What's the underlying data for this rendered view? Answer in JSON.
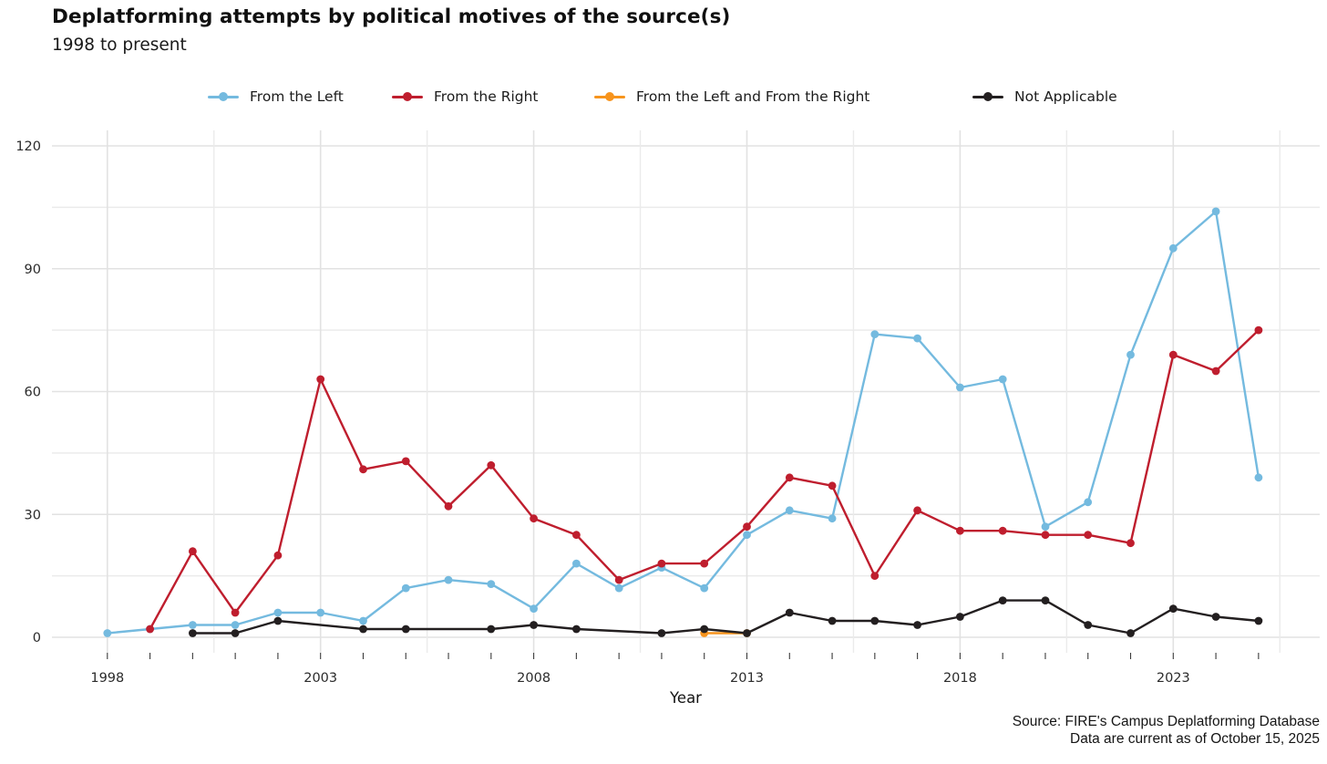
{
  "header": {
    "title": "Deplatforming attempts by political motives of the source(s)",
    "subtitle": "1998 to present"
  },
  "legend": {
    "items": [
      {
        "label": "From the Left",
        "color": "#74BADF"
      },
      {
        "label": "From the Right",
        "color": "#BF1E2E"
      },
      {
        "label": "From the Left and From the Right",
        "color": "#F7941D"
      },
      {
        "label": "Not Applicable",
        "color": "#231F20"
      }
    ]
  },
  "chart_data": {
    "type": "line",
    "title": "Deplatforming attempts by political motives of the source(s)",
    "subtitle": "1998 to present",
    "xlabel": "Year",
    "ylabel": "",
    "ylim": [
      0,
      120
    ],
    "grid": true,
    "legend_position": "top",
    "y_major_ticks": [
      0,
      30,
      60,
      90,
      120
    ],
    "y_minor_gridlines": [
      15,
      45,
      75,
      105
    ],
    "x_major_ticks": [
      1998,
      2003,
      2008,
      2013,
      2018,
      2023
    ],
    "x_minor_gridlines": [
      2000.5,
      2005.5,
      2010.5,
      2015.5,
      2020.5,
      2025.5
    ],
    "years": [
      1998,
      1999,
      2000,
      2001,
      2002,
      2003,
      2004,
      2005,
      2006,
      2007,
      2008,
      2009,
      2010,
      2011,
      2012,
      2013,
      2014,
      2015,
      2016,
      2017,
      2018,
      2019,
      2020,
      2021,
      2022,
      2023,
      2024,
      2025
    ],
    "series": [
      {
        "name": "From the Left",
        "color": "#74BADF",
        "values": [
          1,
          2,
          3,
          3,
          6,
          6,
          4,
          12,
          14,
          13,
          7,
          18,
          12,
          17,
          12,
          25,
          31,
          29,
          74,
          73,
          61,
          63,
          27,
          33,
          69,
          95,
          104,
          39
        ]
      },
      {
        "name": "From the Right",
        "color": "#BF1E2E",
        "values": [
          null,
          2,
          21,
          6,
          20,
          63,
          41,
          43,
          32,
          42,
          29,
          25,
          14,
          18,
          18,
          27,
          39,
          37,
          15,
          31,
          26,
          26,
          25,
          25,
          23,
          69,
          65,
          75
        ]
      },
      {
        "name": "From the Left and From the Right",
        "color": "#F7941D",
        "values": [
          null,
          null,
          null,
          null,
          null,
          null,
          null,
          null,
          null,
          null,
          null,
          null,
          null,
          null,
          1,
          1,
          null,
          null,
          null,
          null,
          null,
          null,
          null,
          null,
          null,
          null,
          null,
          null
        ]
      },
      {
        "name": "Not Applicable",
        "color": "#231F20",
        "values": [
          null,
          null,
          1,
          1,
          4,
          null,
          2,
          2,
          null,
          2,
          3,
          2,
          null,
          1,
          2,
          1,
          6,
          4,
          4,
          3,
          5,
          9,
          9,
          3,
          1,
          7,
          5,
          4
        ]
      }
    ]
  },
  "footer": {
    "source_line1": "Source: FIRE's Campus Deplatforming Database",
    "source_line2": "Data are current as of October 15, 2025"
  }
}
